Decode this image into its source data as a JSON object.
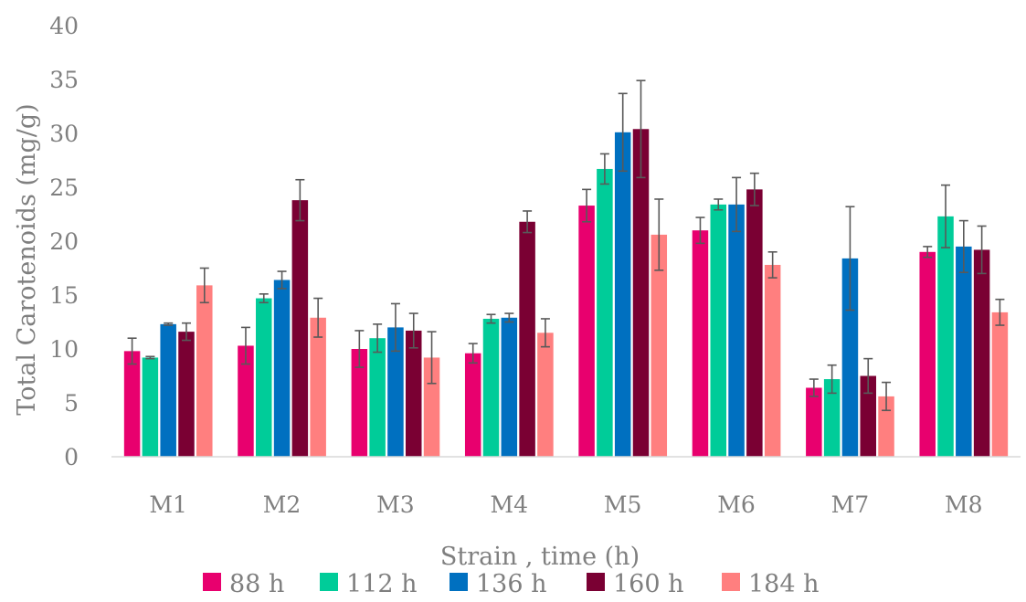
{
  "chart_data": {
    "type": "bar",
    "xlabel": "Strain , time (h)",
    "ylabel": "Total Carotenoids (mg/g)",
    "ylim": [
      0,
      40
    ],
    "yticks": [
      0,
      5,
      10,
      15,
      20,
      25,
      30,
      35,
      40
    ],
    "grid": false,
    "legend_position": "bottom",
    "categories": [
      "M1",
      "M2",
      "M3",
      "M4",
      "M5",
      "M6",
      "M7",
      "M8"
    ],
    "series": [
      {
        "name": "88 h",
        "color": "#e8006e",
        "values": [
          9.8,
          10.3,
          10.0,
          9.6,
          23.3,
          21.0,
          6.4,
          19.0
        ],
        "errors": [
          1.2,
          1.7,
          1.7,
          0.9,
          1.5,
          1.2,
          0.8,
          0.5
        ]
      },
      {
        "name": "112 h",
        "color": "#00cc99",
        "values": [
          9.2,
          14.7,
          11.0,
          12.8,
          26.7,
          23.4,
          7.2,
          22.3
        ],
        "errors": [
          0.1,
          0.4,
          1.3,
          0.4,
          1.4,
          0.5,
          1.3,
          2.9
        ]
      },
      {
        "name": "136 h",
        "color": "#0070c0",
        "values": [
          12.3,
          16.4,
          12.0,
          12.9,
          30.1,
          23.4,
          18.4,
          19.5
        ],
        "errors": [
          0.1,
          0.8,
          2.2,
          0.4,
          3.6,
          2.5,
          4.8,
          2.4
        ]
      },
      {
        "name": "160 h",
        "color": "#7a0033",
        "values": [
          11.6,
          23.8,
          11.7,
          21.8,
          30.4,
          24.8,
          7.5,
          19.2
        ],
        "errors": [
          0.8,
          1.9,
          1.6,
          1.0,
          4.5,
          1.5,
          1.6,
          2.2
        ]
      },
      {
        "name": "184 h",
        "color": "#ff7f7f",
        "values": [
          15.9,
          12.9,
          9.2,
          11.5,
          20.6,
          17.8,
          5.6,
          13.4
        ],
        "errors": [
          1.6,
          1.8,
          2.4,
          1.3,
          3.3,
          1.2,
          1.3,
          1.2
        ]
      }
    ]
  }
}
